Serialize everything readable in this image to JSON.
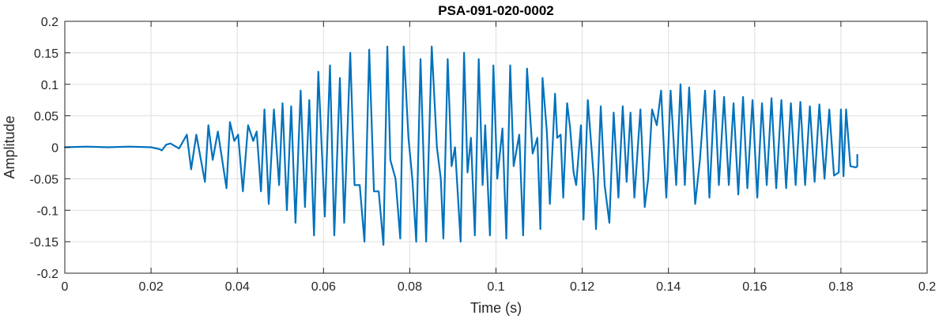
{
  "chart_data": {
    "type": "line",
    "title": "PSA-091-020-0002",
    "xlabel": "Time (s)",
    "ylabel": "Amplitude",
    "xlim": [
      0,
      0.2
    ],
    "ylim": [
      -0.2,
      0.2
    ],
    "xticks": [
      0,
      0.02,
      0.04,
      0.06,
      0.08,
      0.1,
      0.12,
      0.14,
      0.16,
      0.18,
      0.2
    ],
    "xtick_labels": [
      "0",
      "0.02",
      "0.04",
      "0.06",
      "0.08",
      "0.1",
      "0.12",
      "0.14",
      "0.16",
      "0.18",
      "0.2"
    ],
    "yticks": [
      -0.2,
      -0.15,
      -0.1,
      -0.05,
      0,
      0.05,
      0.1,
      0.15,
      0.2
    ],
    "ytick_labels": [
      "-0.2",
      "-0.15",
      "-0.1",
      "-0.05",
      "0",
      "0.05",
      "0.1",
      "0.15",
      "0.2"
    ],
    "grid": true,
    "line_color": "#0072BD",
    "series": [
      {
        "x": [
          0,
          0.005,
          0.01,
          0.015,
          0.02,
          0.022,
          0.0225,
          0.0235,
          0.0245,
          0.0265,
          0.0283,
          0.0293,
          0.0305,
          0.0325,
          0.0333,
          0.0343,
          0.0355,
          0.0375,
          0.0383,
          0.0393,
          0.0402,
          0.0413,
          0.0425,
          0.0437,
          0.0445,
          0.0455,
          0.0463,
          0.0473,
          0.0485,
          0.0497,
          0.0505,
          0.0515,
          0.0525,
          0.0535,
          0.0547,
          0.0557,
          0.0567,
          0.0578,
          0.0588,
          0.0603,
          0.0615,
          0.0625,
          0.0638,
          0.0648,
          0.0662,
          0.0672,
          0.0684,
          0.0695,
          0.0706,
          0.0717,
          0.0728,
          0.0739,
          0.0748,
          0.0755,
          0.0767,
          0.0778,
          0.0786,
          0.0797,
          0.0806,
          0.0815,
          0.0825,
          0.0838,
          0.0851,
          0.0863,
          0.0872,
          0.0878,
          0.0888,
          0.0897,
          0.0905,
          0.0918,
          0.0926,
          0.0934,
          0.0942,
          0.0951,
          0.096,
          0.0969,
          0.0975,
          0.0986,
          0.0994,
          0.1003,
          0.1015,
          0.1024,
          0.1033,
          0.1041,
          0.1054,
          0.1063,
          0.1072,
          0.1085,
          0.1096,
          0.1103,
          0.1108,
          0.1118,
          0.1125,
          0.1137,
          0.1142,
          0.115,
          0.1156,
          0.1165,
          0.1172,
          0.118,
          0.1186,
          0.1197,
          0.1203,
          0.1213,
          0.1218,
          0.1227,
          0.1232,
          0.1243,
          0.1252,
          0.1263,
          0.1273,
          0.1284,
          0.1294,
          0.1303,
          0.1312,
          0.1321,
          0.1335,
          0.1345,
          0.1353,
          0.1362,
          0.1373,
          0.1383,
          0.1395,
          0.1405,
          0.1418,
          0.1428,
          0.1438,
          0.1448,
          0.1462,
          0.1473,
          0.1485,
          0.1495,
          0.1507,
          0.1517,
          0.1529,
          0.154,
          0.1551,
          0.1562,
          0.1573,
          0.1583,
          0.1595,
          0.1606,
          0.1617,
          0.1628,
          0.1639,
          0.165,
          0.1662,
          0.1673,
          0.1684,
          0.1695,
          0.1706,
          0.1717,
          0.1728,
          0.1739,
          0.175,
          0.1762,
          0.1773,
          0.1784,
          0.1795,
          0.18,
          0.1806,
          0.1812,
          0.1822,
          0.1835,
          0.1838,
          0.1838
        ],
        "y": [
          0.0,
          0.001,
          0.0,
          0.001,
          0.0,
          -0.003,
          -0.005,
          0.004,
          0.006,
          -0.002,
          0.02,
          -0.035,
          0.02,
          -0.055,
          0.035,
          -0.02,
          0.025,
          -0.065,
          0.04,
          0.01,
          0.02,
          -0.07,
          0.035,
          0.01,
          0.025,
          -0.07,
          0.06,
          -0.09,
          0.06,
          -0.06,
          0.07,
          -0.1,
          0.065,
          -0.12,
          0.09,
          -0.095,
          0.075,
          -0.14,
          0.12,
          -0.11,
          0.13,
          -0.14,
          0.11,
          -0.12,
          0.15,
          -0.06,
          -0.06,
          -0.15,
          0.155,
          -0.07,
          -0.07,
          -0.155,
          0.16,
          -0.02,
          -0.05,
          -0.145,
          0.16,
          0.015,
          -0.05,
          -0.15,
          0.14,
          -0.15,
          0.16,
          0.0,
          -0.05,
          -0.145,
          0.14,
          -0.03,
          0.0,
          -0.15,
          0.15,
          -0.04,
          0.015,
          -0.14,
          0.14,
          -0.06,
          0.035,
          -0.14,
          0.13,
          -0.05,
          0.03,
          -0.145,
          0.13,
          -0.03,
          0.02,
          -0.14,
          0.125,
          -0.01,
          0.015,
          -0.13,
          0.11,
          0.025,
          -0.09,
          0.085,
          0.015,
          0.02,
          -0.08,
          0.07,
          0.03,
          -0.04,
          -0.06,
          0.035,
          -0.115,
          0.075,
          0.03,
          -0.05,
          -0.13,
          0.065,
          -0.06,
          -0.12,
          0.055,
          -0.08,
          0.065,
          -0.055,
          0.055,
          -0.08,
          0.06,
          -0.095,
          -0.05,
          0.06,
          0.035,
          0.09,
          -0.08,
          0.09,
          -0.06,
          0.1,
          -0.06,
          0.095,
          -0.09,
          -0.02,
          0.09,
          -0.08,
          0.09,
          -0.06,
          0.08,
          -0.06,
          0.07,
          -0.075,
          0.08,
          -0.065,
          0.075,
          -0.08,
          0.07,
          -0.06,
          0.078,
          -0.065,
          0.075,
          -0.065,
          0.07,
          -0.06,
          0.072,
          -0.06,
          0.065,
          -0.055,
          0.068,
          -0.05,
          0.06,
          -0.045,
          -0.04,
          0.06,
          -0.046,
          0.06,
          -0.03,
          -0.032,
          -0.03,
          -0.012
        ]
      }
    ]
  }
}
